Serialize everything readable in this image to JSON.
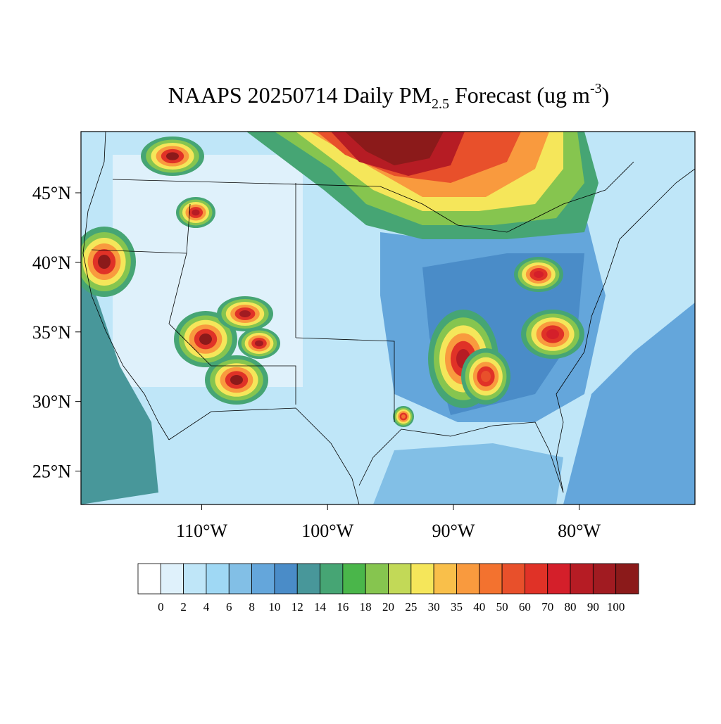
{
  "map": {
    "title": {
      "prefix": "NAAPS 20250714 Daily PM",
      "subscript": "2.5",
      "middle": " Forecast (ug m",
      "superscript": "-3",
      "suffix": ")"
    },
    "latlim": [
      22.6,
      49.4
    ],
    "lonlim": [
      -119.6,
      -70.8
    ],
    "latticks": [
      {
        "value": 45,
        "label": "45°N"
      },
      {
        "value": 40,
        "label": "40°N"
      },
      {
        "value": 35,
        "label": "35°N"
      },
      {
        "value": 30,
        "label": "30°N"
      },
      {
        "value": 25,
        "label": "25°N"
      }
    ],
    "lonticks": [
      {
        "value": -110,
        "label": "110°W"
      },
      {
        "value": -100,
        "label": "100°W"
      },
      {
        "value": -90,
        "label": "90°W"
      },
      {
        "value": -80,
        "label": "80°W"
      }
    ],
    "colorbar": {
      "levels": [
        0,
        2,
        4,
        6,
        8,
        10,
        12,
        14,
        16,
        18,
        20,
        25,
        30,
        35,
        40,
        50,
        60,
        70,
        80,
        90,
        100
      ],
      "colors": [
        "#ffffff",
        "#dff1fb",
        "#bfe6f8",
        "#9fd8f4",
        "#82bfe6",
        "#64a6db",
        "#4a8cc8",
        "#48979a",
        "#46a574",
        "#4ab64a",
        "#86c54f",
        "#c2d957",
        "#f5e65a",
        "#f9bf4a",
        "#f99a3e",
        "#f3722f",
        "#e8502b",
        "#e03227",
        "#d41f2a",
        "#b61c24",
        "#a11b21",
        "#8b1a1a"
      ]
    }
  }
}
